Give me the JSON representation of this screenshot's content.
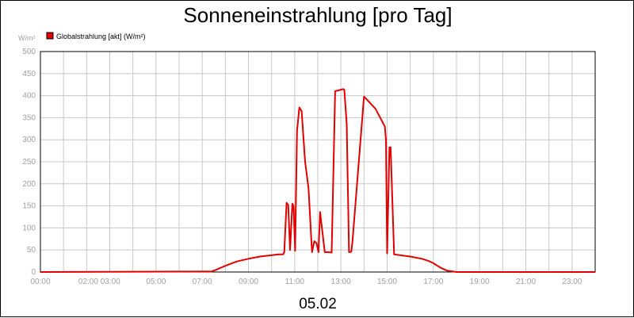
{
  "chart_data": {
    "type": "line",
    "title": "Sonneneinstrahlung [pro Tag]",
    "ylabel": "W/m²",
    "xlabel": "05.02",
    "ylim": [
      0,
      500
    ],
    "xlim": [
      0,
      24
    ],
    "grid": true,
    "legend_position": "top-left",
    "y_ticks": [
      "0",
      "50",
      "100",
      "150",
      "200",
      "250",
      "300",
      "350",
      "400",
      "450",
      "500"
    ],
    "x_ticks": [
      "00:00",
      "02:00 03:00",
      "05:00",
      "07:00",
      "09:00",
      "11:00",
      "13:00",
      "15:00",
      "17:00",
      "19:00",
      "21:00",
      "23:00"
    ],
    "x_tick_hours": [
      0,
      2,
      5,
      7,
      9,
      11,
      13,
      15,
      17,
      19,
      21,
      23
    ],
    "colors": {
      "series": "#e00000",
      "grid": "#c8c8c8",
      "axis_text": "#a0a0a0"
    },
    "series": [
      {
        "name": "Globalstrahlung [akt] (W/m²)",
        "x": [
          0,
          7.4,
          7.6,
          8.0,
          8.5,
          9.0,
          9.5,
          10.0,
          10.3,
          10.5,
          10.55,
          10.65,
          10.72,
          10.8,
          10.9,
          10.95,
          11.02,
          11.1,
          11.2,
          11.3,
          11.45,
          11.6,
          11.75,
          11.85,
          11.95,
          12.03,
          12.1,
          12.3,
          12.45,
          12.6,
          12.75,
          13.1,
          13.15,
          13.25,
          13.35,
          13.45,
          13.5,
          14.0,
          14.5,
          14.9,
          14.95,
          15.0,
          15.1,
          15.15,
          15.3,
          16.0,
          16.5,
          16.8,
          17.0,
          17.3,
          17.6,
          18.0,
          24.0
        ],
        "y": [
          0,
          1,
          5,
          14,
          24,
          30,
          35,
          38,
          40,
          40,
          45,
          157,
          152,
          50,
          155,
          150,
          48,
          320,
          373,
          365,
          250,
          190,
          45,
          70,
          65,
          45,
          136,
          45,
          45,
          44,
          410,
          415,
          413,
          335,
          45,
          46,
          70,
          398,
          370,
          330,
          300,
          42,
          283,
          283,
          40,
          35,
          30,
          25,
          20,
          10,
          3,
          0,
          0
        ]
      }
    ]
  }
}
